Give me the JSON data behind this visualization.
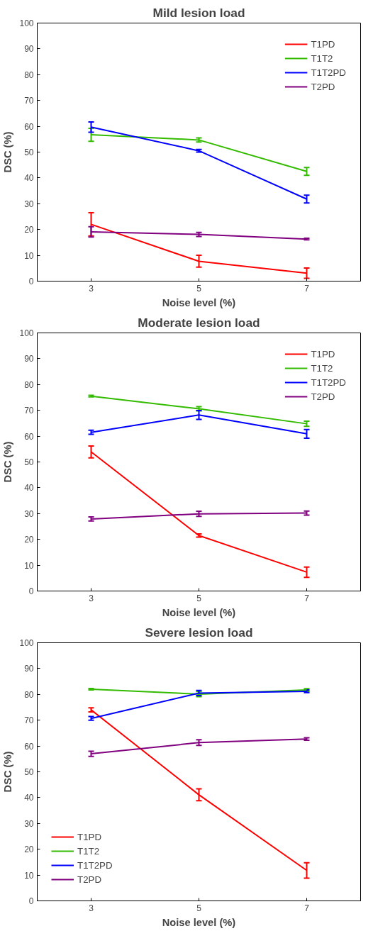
{
  "chart_data": [
    {
      "type": "line",
      "title": "Mild lesion load",
      "xlabel": "Noise level (%)",
      "ylabel": "DSC (%)",
      "x": [
        3,
        5,
        7
      ],
      "xlim": [
        2,
        8
      ],
      "xticks": [
        3,
        5,
        7
      ],
      "ylim": [
        0,
        100
      ],
      "yticks": [
        0,
        10,
        20,
        30,
        40,
        50,
        60,
        70,
        80,
        90,
        100
      ],
      "grid": false,
      "legend": "top right",
      "marker": "none",
      "line_style": "solid",
      "series": [
        {
          "name": "T1PD",
          "color": "#ff0000",
          "values": [
            22,
            7.7,
            3.1
          ],
          "errors": [
            4.5,
            2.3,
            2
          ]
        },
        {
          "name": "T1T2",
          "color": "#33bb00",
          "values": [
            56.7,
            54.7,
            42.5
          ],
          "errors": [
            2.5,
            0.8,
            1.5
          ]
        },
        {
          "name": "T1T2PD",
          "color": "#0000ff",
          "values": [
            59.7,
            50.5,
            31.8
          ],
          "errors": [
            2,
            0.5,
            1.5
          ]
        },
        {
          "name": "T2PD",
          "color": "#800080",
          "values": [
            19.1,
            18.1,
            16.3
          ],
          "errors": [
            2,
            0.8,
            0.3
          ]
        }
      ]
    },
    {
      "type": "line",
      "title": "Moderate lesion load",
      "xlabel": "Noise level (%)",
      "ylabel": "DSC (%)",
      "x": [
        3,
        5,
        7
      ],
      "xlim": [
        2,
        8
      ],
      "xticks": [
        3,
        5,
        7
      ],
      "ylim": [
        0,
        100
      ],
      "yticks": [
        0,
        10,
        20,
        30,
        40,
        50,
        60,
        70,
        80,
        90,
        100
      ],
      "grid": false,
      "legend": "top right",
      "marker": "none",
      "line_style": "solid",
      "series": [
        {
          "name": "T1PD",
          "color": "#ff0000",
          "values": [
            53.9,
            21.5,
            7.3
          ],
          "errors": [
            2.3,
            0.6,
            2
          ]
        },
        {
          "name": "T1T2",
          "color": "#33bb00",
          "values": [
            75.5,
            70.6,
            64.8
          ],
          "errors": [
            0.3,
            0.8,
            1
          ]
        },
        {
          "name": "T1T2PD",
          "color": "#0000ff",
          "values": [
            61.5,
            68.2,
            60.9
          ],
          "errors": [
            0.8,
            1.7,
            1.7
          ]
        },
        {
          "name": "T2PD",
          "color": "#800080",
          "values": [
            27.9,
            29.9,
            30.2
          ],
          "errors": [
            0.8,
            1,
            0.8
          ]
        }
      ]
    },
    {
      "type": "line",
      "title": "Severe lesion load",
      "xlabel": "Noise level (%)",
      "ylabel": "DSC (%)",
      "x": [
        3,
        5,
        7
      ],
      "xlim": [
        2,
        8
      ],
      "xticks": [
        3,
        5,
        7
      ],
      "ylim": [
        0,
        100
      ],
      "yticks": [
        0,
        10,
        20,
        30,
        40,
        50,
        60,
        70,
        80,
        90,
        100
      ],
      "grid": false,
      "legend": "bottom left",
      "marker": "none",
      "line_style": "solid",
      "series": [
        {
          "name": "T1PD",
          "color": "#ff0000",
          "values": [
            74,
            41.1,
            11.8
          ],
          "errors": [
            0.8,
            2.3,
            3
          ]
        },
        {
          "name": "T1T2",
          "color": "#33bb00",
          "values": [
            82,
            80.1,
            81.7
          ],
          "errors": [
            0.3,
            1,
            0.5
          ]
        },
        {
          "name": "T1T2PD",
          "color": "#0000ff",
          "values": [
            70.7,
            80.5,
            81.2
          ],
          "errors": [
            0.7,
            1,
            0.5
          ]
        },
        {
          "name": "T2PD",
          "color": "#800080",
          "values": [
            57,
            61.3,
            62.7
          ],
          "errors": [
            1,
            1.1,
            0.5
          ]
        }
      ]
    }
  ]
}
